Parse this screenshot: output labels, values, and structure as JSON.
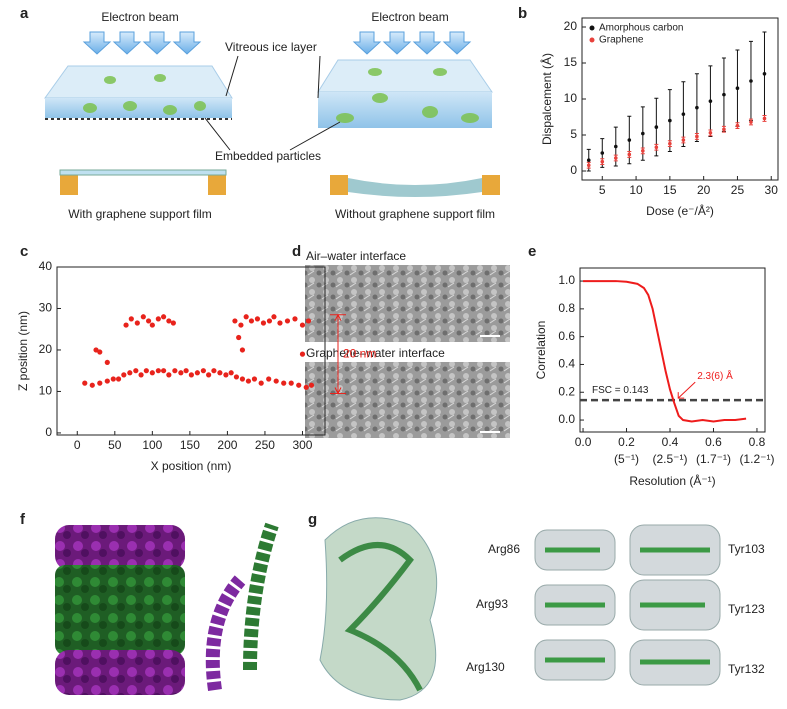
{
  "panel_labels": [
    "a",
    "b",
    "c",
    "d",
    "e",
    "f",
    "g"
  ],
  "panel_a": {
    "beam_labels": [
      "Electron beam",
      "Electron beam"
    ],
    "ice_label": "Vitreous ice layer",
    "particles_label": "Embedded particles",
    "captions": [
      "With graphene support film",
      "Without graphene support film"
    ]
  },
  "panel_d": {
    "labels": [
      "Air–water interface",
      "Graphene–water interface"
    ]
  },
  "panel_g": {
    "residues": [
      "Arg86",
      "Arg93",
      "Arg130",
      "Tyr103",
      "Tyr123",
      "Tyr132"
    ]
  },
  "chart_data": [
    {
      "type": "errorbar",
      "x_label": "Dose (e⁻/Å²)",
      "y_label": "Dispalcement (Å)",
      "x": [
        3,
        5,
        7,
        9,
        11,
        13,
        15,
        17,
        19,
        21,
        23,
        25,
        27,
        29
      ],
      "series": [
        {
          "name": "Amorphous carbon",
          "color": "#111111",
          "values": [
            1.5,
            2.5,
            3.4,
            4.3,
            5.2,
            6.1,
            7,
            7.9,
            8.8,
            9.7,
            10.6,
            11.5,
            12.5,
            13.5
          ],
          "errors": [
            1.5,
            2,
            2.7,
            3.3,
            3.7,
            4,
            4.3,
            4.5,
            4.7,
            4.9,
            5.1,
            5.3,
            5.5,
            5.8
          ]
        },
        {
          "name": "Graphene",
          "color": "#e8413c",
          "values": [
            0.8,
            1.3,
            1.8,
            2.3,
            2.8,
            3.3,
            3.8,
            4.3,
            4.8,
            5.3,
            5.8,
            6.3,
            6.8,
            7.3
          ],
          "errors": [
            0.4,
            0.4,
            0.4,
            0.4,
            0.4,
            0.4,
            0.4,
            0.4,
            0.4,
            0.4,
            0.4,
            0.4,
            0.4,
            0.4
          ]
        }
      ],
      "xlim": [
        2,
        31
      ],
      "ylim": [
        -1.25,
        21.25
      ],
      "xticks": [
        5,
        10,
        15,
        20,
        25,
        30
      ],
      "yticks": [
        0,
        5,
        10,
        15,
        20
      ],
      "legend": "upper left"
    },
    {
      "type": "scatter",
      "x_label": "X position (nm)",
      "y_label": "Z position (nm)",
      "color": "#e8231c",
      "x": [
        65,
        72,
        80,
        88,
        95,
        100,
        108,
        115,
        122,
        128,
        210,
        218,
        225,
        232,
        240,
        248,
        256,
        262,
        270,
        280,
        290,
        300,
        308,
        25,
        30,
        40,
        215,
        220,
        300,
        10,
        20,
        30,
        40,
        48,
        55,
        62,
        70,
        78,
        85,
        92,
        100,
        108,
        115,
        122,
        130,
        138,
        145,
        152,
        160,
        168,
        175,
        182,
        190,
        198,
        205,
        212,
        220,
        228,
        236,
        245,
        255,
        265,
        275,
        285,
        295,
        305,
        312
      ],
      "values": [
        26,
        27.5,
        26.5,
        28,
        27,
        26,
        27.5,
        28,
        27,
        26.5,
        27,
        26,
        28,
        27,
        27.5,
        26.5,
        27,
        28,
        26.5,
        27,
        27.5,
        26,
        27,
        20,
        19.5,
        17,
        23,
        20,
        19,
        12,
        11.5,
        12,
        12.5,
        13,
        13,
        14,
        14.5,
        15,
        14,
        15,
        14.5,
        15,
        15,
        14,
        15,
        14.5,
        15,
        14,
        14.5,
        15,
        14,
        15,
        14.5,
        14,
        14.5,
        13.5,
        13,
        12.5,
        13,
        12,
        13,
        12.5,
        12,
        12,
        11.5,
        11,
        11.5
      ],
      "xlim": [
        -27,
        330
      ],
      "ylim": [
        -0.5,
        40
      ],
      "xticks": [
        0,
        50,
        100,
        150,
        200,
        250,
        300
      ],
      "yticks": [
        0,
        10,
        20,
        30,
        40
      ],
      "annotation": "20 nm",
      "annotation_range": [
        9.5,
        28.5
      ]
    },
    {
      "type": "line",
      "x_label": "Resolution (Å⁻¹)",
      "y_label": "Correlation",
      "color": "#ee1c1c",
      "x": [
        0,
        0.05,
        0.1,
        0.15,
        0.2,
        0.25,
        0.28,
        0.3,
        0.32,
        0.34,
        0.36,
        0.38,
        0.4,
        0.42,
        0.44,
        0.46,
        0.5,
        0.55,
        0.6,
        0.65,
        0.7,
        0.75
      ],
      "values": [
        1,
        1,
        1,
        1,
        0.995,
        0.98,
        0.95,
        0.9,
        0.8,
        0.65,
        0.5,
        0.35,
        0.22,
        0.12,
        0.03,
        0,
        -0.01,
        0,
        -0.01,
        0,
        0,
        0.01
      ],
      "xlim": [
        -0.014,
        0.837
      ],
      "ylim": [
        -0.086,
        1.094
      ],
      "xticks": [
        {
          "value": 0,
          "label": "0.0"
        },
        0.2,
        0.4,
        0.6,
        0.8
      ],
      "x_reciprocal_ticks": [
        {
          "value": 0.2,
          "label": "(5⁻¹)"
        },
        {
          "value": 0.4,
          "label": "(2.5⁻¹)"
        },
        {
          "value": 0.6,
          "label": "(1.7⁻¹)"
        },
        {
          "value": 0.8,
          "label": "(1.2⁻¹)"
        }
      ],
      "yticks": [
        {
          "value": 0,
          "label": "0.0"
        },
        0.2,
        0.4,
        0.6,
        0.8,
        {
          "value": 1,
          "label": "1.0"
        }
      ],
      "threshold": 0.143,
      "threshold_label": "FSC = 0.143",
      "resolution_label": "2.3(6) Å",
      "resolution_x": 0.424
    }
  ]
}
